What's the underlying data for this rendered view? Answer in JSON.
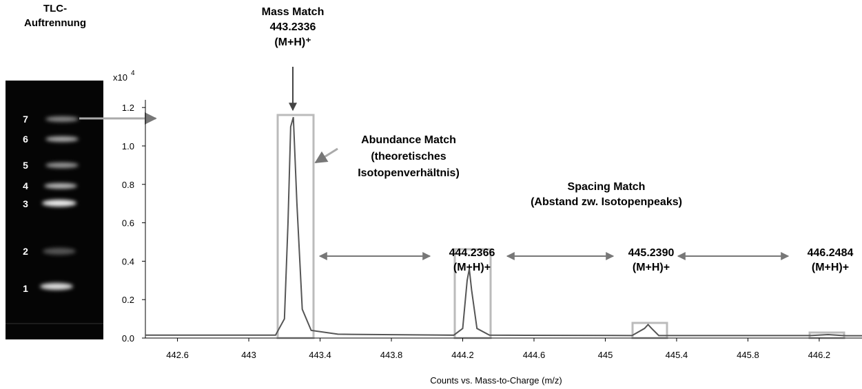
{
  "tlc": {
    "title": [
      "TLC-",
      "Auftrennung"
    ],
    "lanes": [
      "7",
      "6",
      "5",
      "4",
      "3",
      "2",
      "1"
    ]
  },
  "chart_data": {
    "type": "line",
    "x": [
      442.42,
      443.15,
      443.2,
      443.22,
      443.235,
      443.25,
      443.27,
      443.3,
      443.35,
      443.5,
      444.15,
      444.2,
      444.225,
      444.237,
      444.25,
      444.28,
      444.35,
      445.15,
      445.22,
      445.24,
      445.26,
      445.3,
      446.15,
      446.25,
      446.35,
      446.44
    ],
    "values": [
      0.015,
      0.015,
      0.1,
      0.6,
      1.1,
      1.15,
      0.7,
      0.15,
      0.04,
      0.02,
      0.015,
      0.05,
      0.3,
      0.36,
      0.25,
      0.05,
      0.015,
      0.013,
      0.05,
      0.07,
      0.05,
      0.013,
      0.013,
      0.018,
      0.012,
      0.012
    ],
    "color": "#555555",
    "xlim": [
      442.42,
      446.44
    ],
    "ylim": [
      0,
      1.24
    ],
    "xticks": [
      442.6,
      443,
      443.4,
      443.8,
      444.2,
      444.6,
      445,
      445.4,
      445.8,
      446.2
    ],
    "yticks": [
      {
        "value": 0,
        "label": "0.0"
      },
      0.2,
      0.4,
      0.6,
      0.8,
      {
        "value": 1,
        "label": "1.0"
      },
      1.2
    ],
    "y_scale_label": "x10",
    "y_scale_exponent": "4",
    "x_label": "Counts vs. Mass-to-Charge (m/z)",
    "annotations": {
      "mass_match": [
        "Mass Match",
        "443.2336",
        "(M+H)⁺"
      ],
      "abundance_match": [
        "Abundance Match",
        "(theoretisches",
        "Isotopenverhältnis)"
      ],
      "spacing_match": [
        "Spacing Match",
        "(Abstand zw. Isotopenpeaks)"
      ],
      "peaks": [
        [
          "444.2366",
          "(M+H)+"
        ],
        [
          "445.2390",
          "(M+H)+"
        ],
        [
          "446.2484",
          "(M+H)+"
        ]
      ]
    }
  }
}
